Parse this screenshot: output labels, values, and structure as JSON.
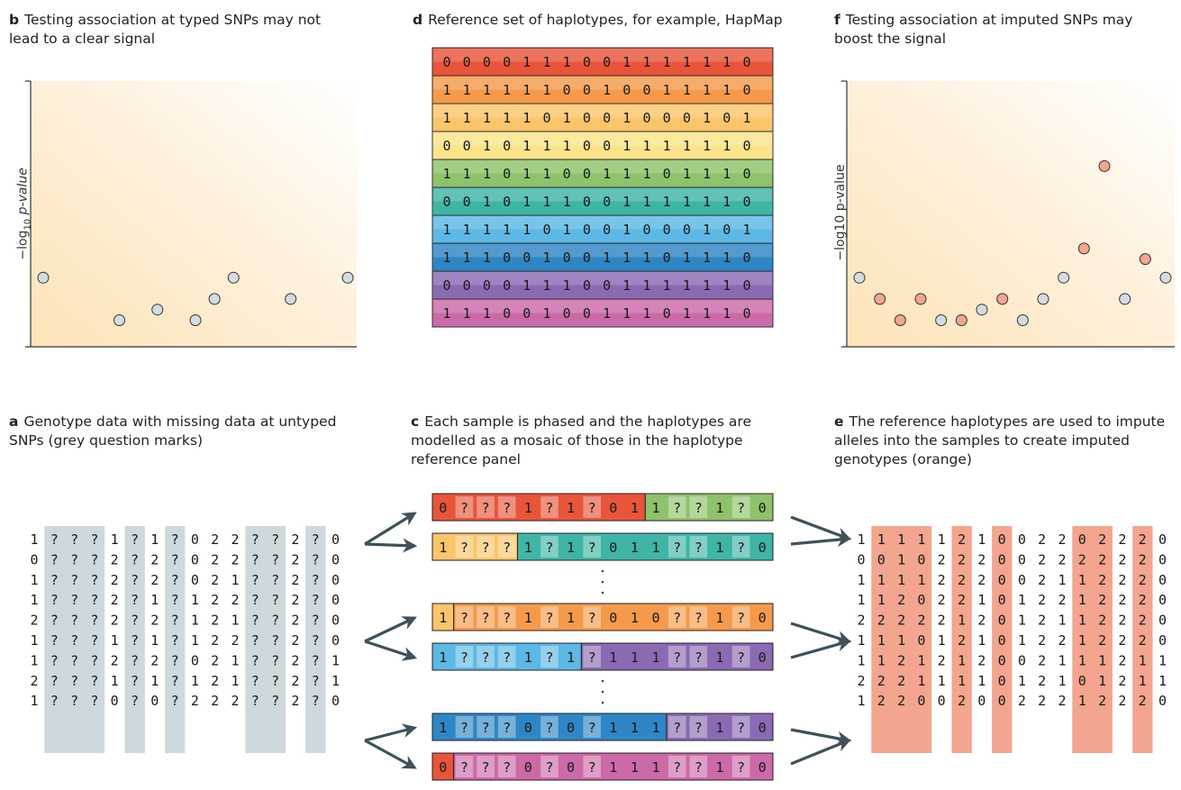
{
  "panels": {
    "b": {
      "letter": "b",
      "text": "Testing association at typed SNPs may not lead to a clear signal",
      "ylabel_main": "−log",
      "ylabel_sub": "10",
      "ylabel_tail": " p-value"
    },
    "d": {
      "letter": "d",
      "text": "Reference set of haplotypes, for example, HapMap"
    },
    "f": {
      "letter": "f",
      "text": "Testing association at imputed SNPs may boost the signal",
      "ylabel": "−log10 p-value"
    },
    "a": {
      "letter": "a",
      "text": "Genotype data with missing data at untyped SNPs (grey question marks)"
    },
    "c": {
      "letter": "c",
      "text": "Each sample is phased and the haplotypes are modelled as a mosaic of those in the haplotype reference panel"
    },
    "e": {
      "letter": "e",
      "text": "The reference haplotypes are used to impute alleles into the samples to create imputed genotypes (orange)"
    }
  },
  "colors": {
    "grey_point": "#d3dcdf",
    "orange_point": "#f3a58f",
    "missing_column": "#cdd9dc",
    "imputed_column": "#f3a58f",
    "arrow": "#3f5159",
    "rows": [
      "#e8553a",
      "#f59a4a",
      "#fbc56a",
      "#fbe48a",
      "#8ec26b",
      "#3fb5a5",
      "#5cb8e4",
      "#2e86c4",
      "#8a6bb3",
      "#cc6aa8"
    ]
  },
  "chart_b": {
    "type": "scatter",
    "points": [
      {
        "x": 1,
        "y": 0.26
      },
      {
        "x": 5,
        "y": 0.1
      },
      {
        "x": 7,
        "y": 0.14
      },
      {
        "x": 9,
        "y": 0.1
      },
      {
        "x": 10,
        "y": 0.18
      },
      {
        "x": 11,
        "y": 0.26
      },
      {
        "x": 14,
        "y": 0.18
      },
      {
        "x": 17,
        "y": 0.26
      }
    ]
  },
  "chart_f": {
    "type": "scatter",
    "points": [
      {
        "x": 1,
        "y": 0.26,
        "imputed": false
      },
      {
        "x": 2,
        "y": 0.18,
        "imputed": true
      },
      {
        "x": 3,
        "y": 0.1,
        "imputed": true
      },
      {
        "x": 4,
        "y": 0.18,
        "imputed": true
      },
      {
        "x": 5,
        "y": 0.1,
        "imputed": false
      },
      {
        "x": 6,
        "y": 0.1,
        "imputed": true
      },
      {
        "x": 7,
        "y": 0.14,
        "imputed": false
      },
      {
        "x": 8,
        "y": 0.18,
        "imputed": true
      },
      {
        "x": 9,
        "y": 0.1,
        "imputed": false
      },
      {
        "x": 10,
        "y": 0.18,
        "imputed": false
      },
      {
        "x": 11,
        "y": 0.26,
        "imputed": false
      },
      {
        "x": 12,
        "y": 0.37,
        "imputed": true
      },
      {
        "x": 13,
        "y": 0.68,
        "imputed": true
      },
      {
        "x": 14,
        "y": 0.18,
        "imputed": false
      },
      {
        "x": 15,
        "y": 0.33,
        "imputed": true
      },
      {
        "x": 16,
        "y": 0.26,
        "imputed": false
      }
    ]
  },
  "reference": [
    "0000111001111110",
    "1111110010011110",
    "1111101001000101",
    "0010111001111110",
    "1110110011101110",
    "0010111001111110",
    "1111101001000101",
    "1110010011101110",
    "0000111001111110",
    "1110010011101110"
  ],
  "genotypes": [
    [
      "1",
      "?",
      "?",
      "?",
      "1",
      "?",
      "1",
      "?",
      "0",
      "2",
      "2",
      "?",
      "?",
      "2",
      "?",
      "0"
    ],
    [
      "0",
      "?",
      "?",
      "?",
      "2",
      "?",
      "2",
      "?",
      "0",
      "2",
      "2",
      "?",
      "?",
      "2",
      "?",
      "0"
    ],
    [
      "1",
      "?",
      "?",
      "?",
      "2",
      "?",
      "2",
      "?",
      "0",
      "2",
      "1",
      "?",
      "?",
      "2",
      "?",
      "0"
    ],
    [
      "1",
      "?",
      "?",
      "?",
      "2",
      "?",
      "1",
      "?",
      "1",
      "2",
      "2",
      "?",
      "?",
      "2",
      "?",
      "0"
    ],
    [
      "2",
      "?",
      "?",
      "?",
      "2",
      "?",
      "2",
      "?",
      "1",
      "2",
      "1",
      "?",
      "?",
      "2",
      "?",
      "0"
    ],
    [
      "1",
      "?",
      "?",
      "?",
      "1",
      "?",
      "1",
      "?",
      "1",
      "2",
      "2",
      "?",
      "?",
      "2",
      "?",
      "0"
    ],
    [
      "1",
      "?",
      "?",
      "?",
      "2",
      "?",
      "2",
      "?",
      "0",
      "2",
      "1",
      "?",
      "?",
      "2",
      "?",
      "1"
    ],
    [
      "2",
      "?",
      "?",
      "?",
      "1",
      "?",
      "1",
      "?",
      "1",
      "2",
      "1",
      "?",
      "?",
      "2",
      "?",
      "1"
    ],
    [
      "1",
      "?",
      "?",
      "?",
      "0",
      "?",
      "0",
      "?",
      "2",
      "2",
      "2",
      "?",
      "?",
      "2",
      "?",
      "0"
    ]
  ],
  "imputed": [
    [
      "1",
      "1",
      "1",
      "1",
      "1",
      "2",
      "1",
      "0",
      "0",
      "2",
      "2",
      "0",
      "2",
      "2",
      "2",
      "0"
    ],
    [
      "0",
      "0",
      "1",
      "0",
      "2",
      "2",
      "2",
      "0",
      "0",
      "2",
      "2",
      "2",
      "2",
      "2",
      "2",
      "0"
    ],
    [
      "1",
      "1",
      "1",
      "1",
      "2",
      "2",
      "2",
      "0",
      "0",
      "2",
      "1",
      "1",
      "2",
      "2",
      "2",
      "0"
    ],
    [
      "1",
      "1",
      "2",
      "0",
      "2",
      "2",
      "1",
      "0",
      "1",
      "2",
      "2",
      "1",
      "2",
      "2",
      "2",
      "0"
    ],
    [
      "2",
      "2",
      "2",
      "2",
      "2",
      "1",
      "2",
      "0",
      "1",
      "2",
      "1",
      "1",
      "2",
      "2",
      "2",
      "0"
    ],
    [
      "1",
      "1",
      "1",
      "0",
      "1",
      "2",
      "1",
      "0",
      "1",
      "2",
      "2",
      "1",
      "2",
      "2",
      "2",
      "0"
    ],
    [
      "1",
      "1",
      "2",
      "1",
      "2",
      "1",
      "2",
      "0",
      "0",
      "2",
      "1",
      "1",
      "1",
      "2",
      "1",
      "1"
    ],
    [
      "2",
      "2",
      "2",
      "1",
      "1",
      "1",
      "1",
      "0",
      "1",
      "2",
      "1",
      "0",
      "1",
      "2",
      "1",
      "1"
    ],
    [
      "1",
      "2",
      "2",
      "0",
      "0",
      "2",
      "0",
      "0",
      "2",
      "2",
      "2",
      "1",
      "2",
      "2",
      "2",
      "0"
    ]
  ],
  "mosaics": [
    {
      "y": 548,
      "text": [
        "0",
        "?",
        "?",
        "?",
        "1",
        "?",
        "1",
        "?",
        "0",
        "1",
        "1",
        "?",
        "?",
        "1",
        "?",
        "0"
      ],
      "segments": [
        {
          "from": 0,
          "to": 10,
          "color": 0
        },
        {
          "from": 10,
          "to": 16,
          "color": 4
        }
      ]
    },
    {
      "y": 592,
      "text": [
        "1",
        "?",
        "?",
        "?",
        "1",
        "?",
        "1",
        "?",
        "0",
        "1",
        "1",
        "?",
        "?",
        "1",
        "?",
        "0"
      ],
      "segments": [
        {
          "from": 0,
          "to": 4,
          "color": 2
        },
        {
          "from": 4,
          "to": 16,
          "color": 5
        }
      ]
    },
    {
      "y": 670,
      "text": [
        "1",
        "?",
        "?",
        "?",
        "1",
        "?",
        "1",
        "?",
        "0",
        "1",
        "0",
        "?",
        "?",
        "1",
        "?",
        "0"
      ],
      "segments": [
        {
          "from": 0,
          "to": 1,
          "color": 2
        },
        {
          "from": 1,
          "to": 16,
          "color": 1
        }
      ]
    },
    {
      "y": 714,
      "text": [
        "1",
        "?",
        "?",
        "?",
        "1",
        "?",
        "1",
        "?",
        "1",
        "1",
        "1",
        "?",
        "?",
        "1",
        "?",
        "0"
      ],
      "segments": [
        {
          "from": 0,
          "to": 7,
          "color": 6
        },
        {
          "from": 7,
          "to": 16,
          "color": 8
        }
      ]
    },
    {
      "y": 792,
      "text": [
        "1",
        "?",
        "?",
        "?",
        "0",
        "?",
        "0",
        "?",
        "1",
        "1",
        "1",
        "?",
        "?",
        "1",
        "?",
        "0"
      ],
      "segments": [
        {
          "from": 0,
          "to": 11,
          "color": 7
        },
        {
          "from": 11,
          "to": 16,
          "color": 8
        }
      ]
    },
    {
      "y": 836,
      "text": [
        "0",
        "?",
        "?",
        "?",
        "0",
        "?",
        "0",
        "?",
        "1",
        "1",
        "1",
        "?",
        "?",
        "1",
        "?",
        "0"
      ],
      "segments": [
        {
          "from": 0,
          "to": 1,
          "color": 0
        },
        {
          "from": 1,
          "to": 16,
          "color": 9
        }
      ]
    }
  ],
  "missing_columns": [
    1,
    2,
    3,
    5,
    7,
    11,
    12,
    14
  ]
}
